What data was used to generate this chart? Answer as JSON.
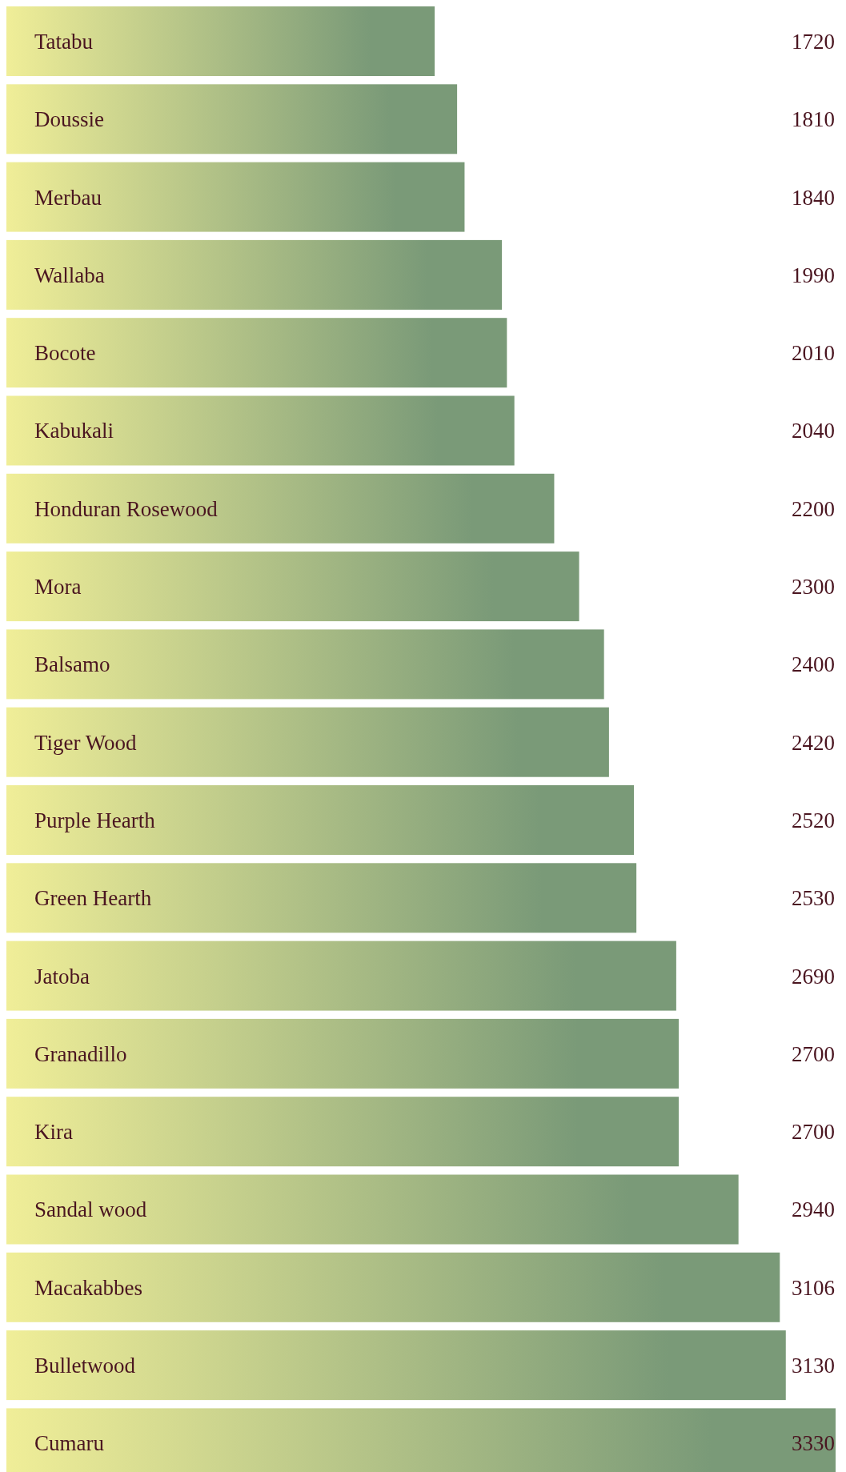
{
  "chart_data": {
    "type": "bar",
    "orientation": "horizontal",
    "categories": [
      "Tatabu",
      "Doussie",
      "Merbau",
      "Wallaba",
      "Bocote",
      "Kabukali",
      "Honduran Rosewood",
      "Mora",
      "Balsamo",
      "Tiger Wood",
      "Purple Hearth",
      "Green Hearth",
      "Jatoba",
      "Granadillo",
      "Kira",
      "Sandal wood",
      "Macakabbes",
      "Bulletwood",
      "Cumaru"
    ],
    "series": [
      {
        "color": "#7a9a78",
        "values": [
          1720,
          1810,
          1840,
          1990,
          2010,
          2040,
          2200,
          2300,
          2400,
          2420,
          2520,
          2530,
          2690,
          2700,
          2700,
          2940,
          3106,
          3130,
          3330
        ]
      }
    ],
    "data_labels": true
  }
}
